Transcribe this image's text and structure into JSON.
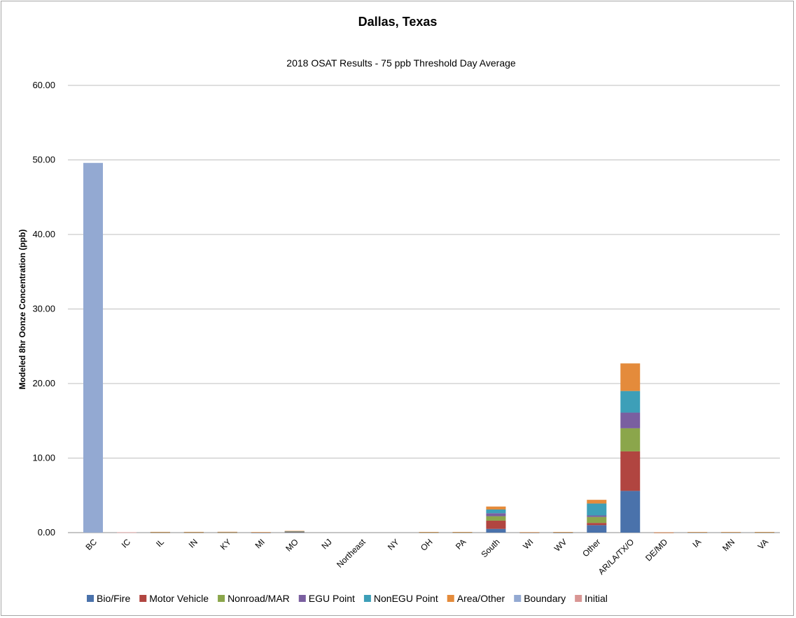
{
  "chart_data": {
    "type": "bar",
    "stacked": true,
    "title": "Dallas, Texas",
    "subtitle": "2018 OSAT Results - 75 ppb Threshold Day Average",
    "ylabel": "Modeled 8hr Oonze Concentration (ppb)",
    "xlabel": "",
    "ylim": [
      0,
      60
    ],
    "yticks": [
      "0.00",
      "10.00",
      "20.00",
      "30.00",
      "40.00",
      "50.00",
      "60.00"
    ],
    "grid": true,
    "legend_position": "bottom",
    "categories": [
      "BC",
      "IC",
      "IL",
      "IN",
      "KY",
      "MI",
      "MO",
      "NJ",
      "Northeast",
      "NY",
      "OH",
      "PA",
      "South",
      "WI",
      "WV",
      "Other",
      "AR/LA/TX/O",
      "DE/MD",
      "IA",
      "MN",
      "VA"
    ],
    "series": [
      {
        "name": "Bio/Fire",
        "color": "#4a72ab",
        "values": [
          0,
          0,
          0.02,
          0.02,
          0.02,
          0.01,
          0.05,
          0,
          0,
          0,
          0.02,
          0.02,
          0.5,
          0.01,
          0.01,
          1.0,
          5.6,
          0.01,
          0.02,
          0.02,
          0.02
        ]
      },
      {
        "name": "Motor Vehicle",
        "color": "#b14540",
        "values": [
          0,
          0,
          0.02,
          0.02,
          0.02,
          0.01,
          0.05,
          0,
          0,
          0,
          0.01,
          0.01,
          1.1,
          0.01,
          0.01,
          0.3,
          5.3,
          0.01,
          0.01,
          0.01,
          0.01
        ]
      },
      {
        "name": "Nonroad/MAR",
        "color": "#8ba64b",
        "values": [
          0,
          0,
          0.01,
          0.01,
          0.01,
          0.01,
          0.03,
          0,
          0,
          0,
          0.01,
          0.01,
          0.6,
          0.01,
          0.01,
          0.8,
          3.1,
          0,
          0.01,
          0.01,
          0.01
        ]
      },
      {
        "name": "EGU Point",
        "color": "#7a5fa0",
        "values": [
          0,
          0,
          0.02,
          0.02,
          0.03,
          0.01,
          0.03,
          0,
          0,
          0,
          0.02,
          0.02,
          0.4,
          0.01,
          0.02,
          0.2,
          2.1,
          0,
          0.01,
          0.01,
          0.02
        ]
      },
      {
        "name": "NonEGU Point",
        "color": "#3d9fb8",
        "values": [
          0,
          0,
          0.01,
          0.01,
          0.01,
          0.01,
          0.02,
          0,
          0,
          0,
          0.01,
          0.01,
          0.5,
          0.01,
          0.01,
          1.6,
          2.9,
          0,
          0.01,
          0.01,
          0.01
        ]
      },
      {
        "name": "Area/Other",
        "color": "#e48b3b",
        "values": [
          0,
          0,
          0.02,
          0.02,
          0.02,
          0.02,
          0.05,
          0,
          0,
          0,
          0.02,
          0.02,
          0.4,
          0.01,
          0.02,
          0.5,
          3.7,
          0.01,
          0.02,
          0.02,
          0.02
        ]
      },
      {
        "name": "Boundary",
        "color": "#93a9d2",
        "values": [
          49.6,
          0,
          0,
          0,
          0,
          0,
          0,
          0,
          0,
          0,
          0,
          0,
          0,
          0,
          0,
          0,
          0,
          0,
          0,
          0,
          0
        ]
      },
      {
        "name": "Initial",
        "color": "#d99694",
        "values": [
          0,
          0.05,
          0,
          0,
          0,
          0,
          0,
          0,
          0,
          0,
          0,
          0,
          0,
          0,
          0,
          0,
          0,
          0,
          0,
          0,
          0
        ]
      }
    ]
  }
}
